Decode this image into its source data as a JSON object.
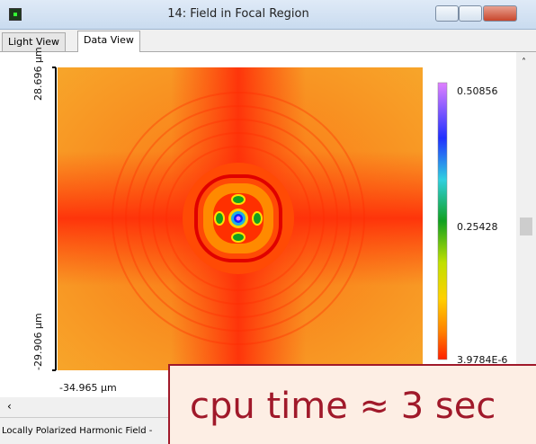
{
  "window": {
    "title": "14: Field in Focal Region"
  },
  "tabs": [
    "Light View",
    "Data View"
  ],
  "plot": {
    "y_top_label": "28.696 µm",
    "y_bottom_label": "-29.906 µm",
    "x_left_label": "-34.965 µm"
  },
  "colorbar": {
    "labels": [
      "0.50856",
      "0.25428",
      "3.9784E-6"
    ]
  },
  "status": {
    "text": "Locally Polarized Harmonic Field -"
  },
  "overlay": {
    "text": "cpu time ≈ 3 sec"
  }
}
